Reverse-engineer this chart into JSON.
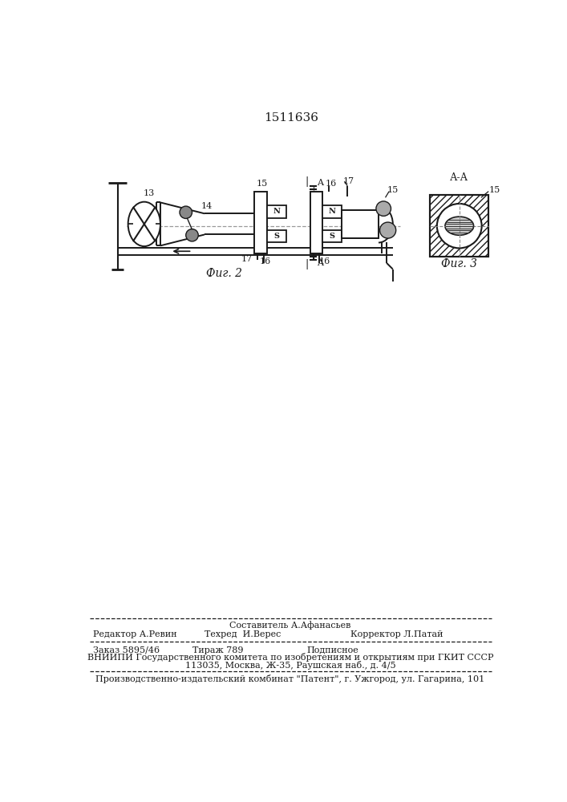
{
  "patent_number": "1511636",
  "fig2_label": "Фиг. 2",
  "fig3_label": "Фиг. 3",
  "aa_label": "А-А",
  "background_color": "#ffffff",
  "line_color": "#1a1a1a",
  "footer_line1_top": "Составитель А.Афанасьев",
  "footer_line1_left": "Редактор А.Ревин",
  "footer_line1_center": "Техред  И.Верес",
  "footer_line1_right": "Корректор Л.Патай",
  "footer_line2_col1": "Заказ 5895/46",
  "footer_line2_col2": "Тираж 789",
  "footer_line2_col3": "Подписное",
  "footer_line3": "ВНИИПИ Государственного комитета по изобретениям и открытиям при ГКИТ СССР",
  "footer_line4": "113035, Москва, Ж-35, Раушская наб., д. 4/5",
  "footer_line5": "Производственно-издательский комбинат \"Патент\", г. Ужгород, ул. Гагарина, 101"
}
